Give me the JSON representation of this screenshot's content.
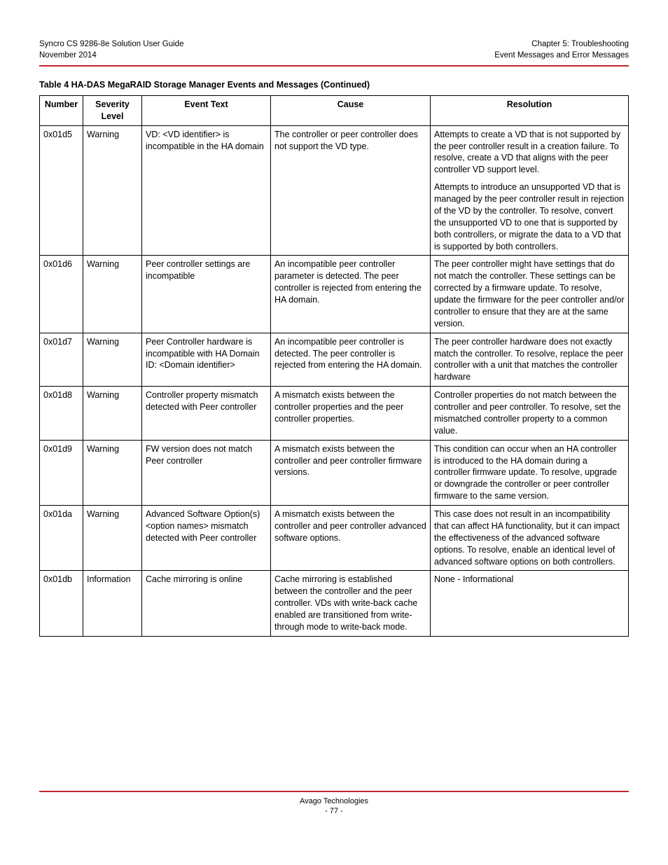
{
  "header": {
    "left_line1": "Syncro CS 9286-8e Solution User Guide",
    "left_line2": "November 2014",
    "right_line1": "Chapter 5: Troubleshooting",
    "right_line2": "Event Messages and Error Messages"
  },
  "table": {
    "caption": "Table 4  HA-DAS MegaRAID Storage Manager Events and Messages (Continued)",
    "columns": {
      "number": "Number",
      "severity": "Severity Level",
      "event_text": "Event Text",
      "cause": "Cause",
      "resolution": "Resolution"
    },
    "rows": [
      {
        "number": "0x01d5",
        "severity": "Warning",
        "event_text": "VD: <VD identifier> is incompatible in the HA domain",
        "cause": "The controller or peer controller does not support the VD type.",
        "resolution_p1": "Attempts to create a VD that is not supported by the peer controller result in a creation failure. To resolve, create a VD that aligns with the peer controller VD support level.",
        "resolution_p2": "Attempts to introduce an unsupported VD that is managed by the peer controller result in rejection of the VD by the controller. To resolve, convert the unsupported VD to one that is supported by both controllers, or migrate the data to a VD that is supported by both controllers."
      },
      {
        "number": "0x01d6",
        "severity": "Warning",
        "event_text": "Peer controller settings are incompatible",
        "cause": "An incompatible peer controller parameter is detected. The peer controller is rejected from entering the HA domain.",
        "resolution_p1": "The peer controller might have settings that do not match the controller. These settings can be corrected by a firmware update. To resolve, update the firmware for the peer controller and/or controller to ensure that they are at the same version."
      },
      {
        "number": "0x01d7",
        "severity": "Warning",
        "event_text": "Peer Controller hardware is incompatible with HA Domain ID: <Domain identifier>",
        "cause": "An incompatible peer controller is detected. The peer controller is rejected from entering the HA domain.",
        "resolution_p1": "The peer controller hardware does not exactly match the controller. To resolve, replace the peer controller with a unit that matches the controller hardware"
      },
      {
        "number": "0x01d8",
        "severity": "Warning",
        "event_text": "Controller property mismatch detected with Peer controller",
        "cause": "A mismatch exists between the controller properties and the peer controller properties.",
        "resolution_p1": "Controller properties do not match between the controller and peer controller. To resolve, set the mismatched controller property to a common value."
      },
      {
        "number": "0x01d9",
        "severity": "Warning",
        "event_text": "FW version does not match Peer controller",
        "cause": "A mismatch exists between the controller and peer controller firmware versions.",
        "resolution_p1": "This condition can occur when an HA controller is introduced to the HA domain during a controller firmware update. To resolve, upgrade or downgrade the controller or peer controller firmware to the same version."
      },
      {
        "number": "0x01da",
        "severity": "Warning",
        "event_text": "Advanced Software Option(s) <option names> mismatch detected with Peer controller",
        "cause": "A mismatch exists between the controller and peer controller advanced software options.",
        "resolution_p1": "This case does not result in an incompatibility that can affect HA functionality, but it can impact the effectiveness of the advanced software options. To resolve, enable an identical level of advanced software options on both controllers."
      },
      {
        "number": "0x01db",
        "severity": "Information",
        "event_text": "Cache mirroring is online",
        "cause": "Cache mirroring is established between the controller and the peer controller. VDs with write-back cache enabled are transitioned from write-through mode to write-back mode.",
        "resolution_p1": "None - Informational"
      }
    ]
  },
  "footer": {
    "company": "Avago Technologies",
    "page": "- 77 -"
  }
}
